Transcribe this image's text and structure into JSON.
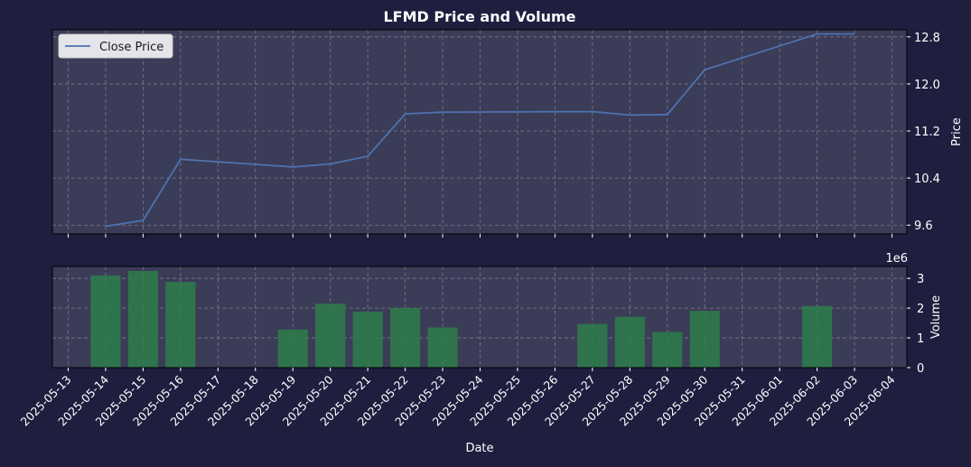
{
  "colors": {
    "figure_bg": "#1e1e3f",
    "axes_bg": "#3b3c57",
    "text": "#ffffff",
    "grid": "#7a7a8e",
    "line": "#4c72b0",
    "bar": "#2e7d4a",
    "legend_bg": "#e4e4ea"
  },
  "chart_data": [
    {
      "type": "line",
      "title": "LFMD Price and Volume",
      "ylabel": "Price",
      "ylim": [
        9.45,
        12.92
      ],
      "yticks": [
        9.6,
        10.4,
        11.2,
        12.0,
        12.8
      ],
      "ytick_labels": [
        "9.6",
        "10.4",
        "11.2",
        "12.0",
        "12.8"
      ],
      "grid": true,
      "legend_position": "top-left",
      "series": [
        {
          "name": "Close Price",
          "x": [
            "2025-05-14",
            "2025-05-15",
            "2025-05-16",
            "2025-05-19",
            "2025-05-20",
            "2025-05-21",
            "2025-05-22",
            "2025-05-23",
            "2025-05-27",
            "2025-05-28",
            "2025-05-29",
            "2025-05-30",
            "2025-06-02",
            "2025-06-03"
          ],
          "values": [
            9.58,
            9.68,
            10.72,
            10.59,
            10.64,
            10.77,
            11.49,
            11.52,
            11.53,
            11.47,
            11.48,
            12.24,
            12.85,
            12.85
          ]
        }
      ]
    },
    {
      "type": "bar",
      "xlabel": "Date",
      "ylabel": "Volume",
      "scale_label": "1e6",
      "ylim": [
        0,
        3.4
      ],
      "yticks": [
        0,
        1,
        2,
        3
      ],
      "ytick_labels": [
        "0",
        "1",
        "2",
        "3"
      ],
      "grid": true,
      "x": [
        "2025-05-14",
        "2025-05-15",
        "2025-05-16",
        "2025-05-19",
        "2025-05-20",
        "2025-05-21",
        "2025-05-22",
        "2025-05-23",
        "2025-05-27",
        "2025-05-28",
        "2025-05-29",
        "2025-05-30",
        "2025-06-02"
      ],
      "values": [
        3.1,
        3.25,
        2.88,
        1.28,
        2.15,
        1.88,
        2.0,
        1.35,
        1.47,
        1.71,
        1.2,
        1.91,
        2.07
      ],
      "xtick_labels": [
        "2025-05-13",
        "2025-05-14",
        "2025-05-15",
        "2025-05-16",
        "2025-05-17",
        "2025-05-18",
        "2025-05-19",
        "2025-05-20",
        "2025-05-21",
        "2025-05-22",
        "2025-05-23",
        "2025-05-24",
        "2025-05-25",
        "2025-05-26",
        "2025-05-27",
        "2025-05-28",
        "2025-05-29",
        "2025-05-30",
        "2025-05-31",
        "2025-06-01",
        "2025-06-02",
        "2025-06-03",
        "2025-06-04"
      ]
    }
  ]
}
